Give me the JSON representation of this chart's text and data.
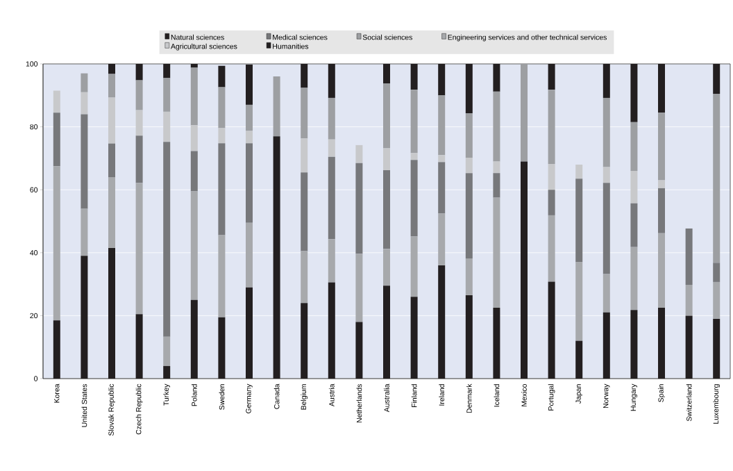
{
  "chart_data": {
    "type": "bar",
    "stacked": true,
    "grid": "y",
    "legend": "top",
    "categories": [
      "Korea",
      "United States",
      "Slovak Republic",
      "Czech Republic",
      "Turkey",
      "Poland",
      "Sweden",
      "Germany",
      "Canada",
      "Belgium",
      "Austria",
      "Netherlands",
      "Australia",
      "Finland",
      "Ireland",
      "Denmark",
      "Iceland",
      "Mexico",
      "Portugal",
      "Japan",
      "Norway",
      "Hungary",
      "Spain",
      "Switzerland",
      "Luxembourg"
    ],
    "ylim": [
      0,
      100
    ],
    "yticks": [
      0,
      20,
      40,
      60,
      80,
      100
    ],
    "series": [
      {
        "name": "Natural sciences",
        "color": "#231f20",
        "values": [
          18.5,
          39,
          41.5,
          20.5,
          4,
          25,
          19.5,
          29,
          77,
          24,
          30.6,
          18,
          29.5,
          26,
          36,
          26.5,
          22.5,
          69,
          30.8,
          12,
          21,
          21.8,
          22.5,
          20,
          19
        ]
      },
      {
        "name": "Engineering services and other technical services",
        "color": "#a7a9ac",
        "values": [
          49,
          15,
          22.5,
          41.7,
          9.3,
          34.5,
          26.1,
          20.5,
          null,
          16.5,
          13.7,
          21.7,
          11.7,
          19.2,
          16.5,
          11.7,
          35,
          null,
          21.1,
          25,
          12.2,
          20,
          23.7,
          9.8,
          11.7
        ]
      },
      {
        "name": "Medical sciences",
        "color": "#77787b",
        "values": [
          17,
          30,
          10.7,
          15,
          61.9,
          12.8,
          29.2,
          25.3,
          null,
          25,
          26.2,
          28.8,
          25,
          24.3,
          16.3,
          27.1,
          7.8,
          null,
          8.1,
          26.5,
          29,
          13.9,
          14.3,
          17.9,
          6.1
        ]
      },
      {
        "name": "Agricultural sciences",
        "color": "#c8c9cb",
        "values": [
          7,
          7,
          14.6,
          8.1,
          9.6,
          8.2,
          4.8,
          3.9,
          null,
          10.8,
          5.5,
          5.7,
          7,
          2.2,
          2.2,
          4.9,
          3.7,
          null,
          8.2,
          4.5,
          5,
          10.3,
          2.5,
          null,
          null
        ]
      },
      {
        "name": "Social sciences",
        "color": "#9d9fa2",
        "values": [
          null,
          6,
          7.5,
          9.5,
          10.7,
          18.3,
          13,
          8.3,
          19,
          16.1,
          13.2,
          null,
          20.6,
          20.1,
          19,
          14.1,
          22.2,
          31,
          23.6,
          null,
          22,
          15.5,
          21.5,
          null,
          53.7
        ]
      },
      {
        "name": "Humanities",
        "color": "#231f20",
        "values": [
          null,
          null,
          3.2,
          5.2,
          4.5,
          1.2,
          6.8,
          12.8,
          null,
          7.6,
          10.8,
          null,
          6.2,
          8.2,
          10,
          15.7,
          8.8,
          null,
          8.2,
          null,
          10.8,
          18.5,
          15.5,
          null,
          9.5
        ]
      }
    ]
  }
}
